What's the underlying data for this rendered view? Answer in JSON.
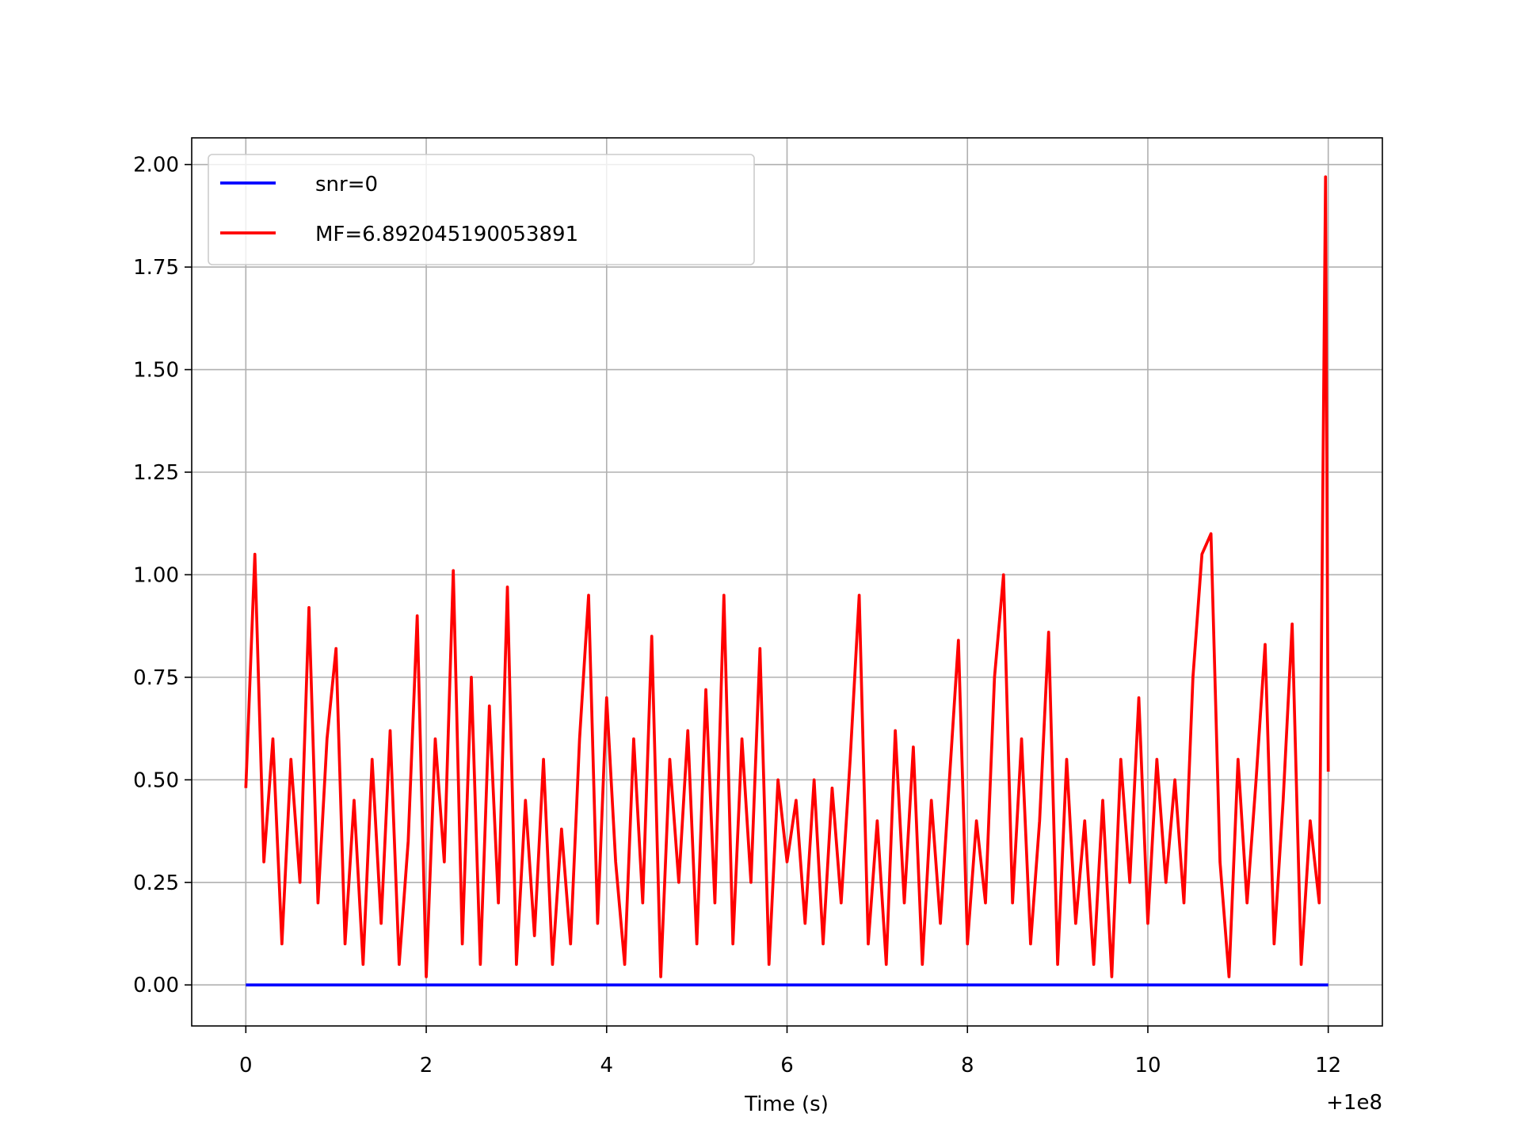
{
  "chart_data": {
    "type": "line",
    "xlabel": "Time (s)",
    "x_offset_label": "+1e8",
    "xlim": [
      -0.6,
      12.6
    ],
    "ylim": [
      -0.1,
      2.065
    ],
    "xticks": [
      0,
      2,
      4,
      6,
      8,
      10,
      12
    ],
    "yticks": [
      {
        "value": 0,
        "label": "0.00"
      },
      {
        "value": 0.25,
        "label": "0.25"
      },
      {
        "value": 0.5,
        "label": "0.50"
      },
      {
        "value": 0.75,
        "label": "0.75"
      },
      {
        "value": 1,
        "label": "1.00"
      },
      {
        "value": 1.25,
        "label": "1.25"
      },
      {
        "value": 1.5,
        "label": "1.50"
      },
      {
        "value": 1.75,
        "label": "1.75"
      },
      {
        "value": 2,
        "label": "2.00"
      }
    ],
    "grid": true,
    "legend": "upper left",
    "series": [
      {
        "name": "snr=0",
        "color": "#0000ff",
        "x": [
          0,
          12
        ],
        "values": [
          0,
          0
        ]
      },
      {
        "name": "MF=6.892045190053891",
        "color": "#ff0000",
        "x": [
          0,
          0.1,
          0.2,
          0.3,
          0.4,
          0.5,
          0.6,
          0.7,
          0.8,
          0.9,
          1,
          1.1,
          1.2,
          1.3,
          1.4,
          1.5,
          1.6,
          1.7,
          1.8,
          1.9,
          2,
          2.1,
          2.2,
          2.3,
          2.4,
          2.5,
          2.6,
          2.7,
          2.8,
          2.9,
          3,
          3.1,
          3.2,
          3.3,
          3.4,
          3.5,
          3.6,
          3.7,
          3.8,
          3.9,
          4,
          4.1,
          4.2,
          4.3,
          4.4,
          4.5,
          4.6,
          4.7,
          4.8,
          4.9,
          5,
          5.1,
          5.2,
          5.3,
          5.4,
          5.5,
          5.6,
          5.7,
          5.8,
          5.9,
          6,
          6.1,
          6.2,
          6.3,
          6.4,
          6.5,
          6.6,
          6.7,
          6.8,
          6.9,
          7,
          7.1,
          7.2,
          7.3,
          7.4,
          7.5,
          7.6,
          7.7,
          7.8,
          7.9,
          8,
          8.1,
          8.2,
          8.3,
          8.4,
          8.5,
          8.6,
          8.7,
          8.8,
          8.9,
          9,
          9.1,
          9.2,
          9.3,
          9.4,
          9.5,
          9.6,
          9.7,
          9.8,
          9.9,
          10,
          10.1,
          10.2,
          10.3,
          10.4,
          10.5,
          10.6,
          10.7,
          10.8,
          10.9,
          11,
          11.1,
          11.2,
          11.3,
          11.4,
          11.5,
          11.6,
          11.7,
          11.8,
          11.9,
          11.97,
          12
        ],
        "values": [
          0.48,
          1.05,
          0.3,
          0.6,
          0.1,
          0.55,
          0.25,
          0.92,
          0.2,
          0.6,
          0.82,
          0.1,
          0.45,
          0.05,
          0.55,
          0.15,
          0.62,
          0.05,
          0.35,
          0.9,
          0.02,
          0.6,
          0.3,
          1.01,
          0.1,
          0.75,
          0.05,
          0.68,
          0.2,
          0.97,
          0.05,
          0.45,
          0.12,
          0.55,
          0.05,
          0.38,
          0.1,
          0.6,
          0.95,
          0.15,
          0.7,
          0.3,
          0.05,
          0.6,
          0.2,
          0.85,
          0.02,
          0.55,
          0.25,
          0.62,
          0.1,
          0.72,
          0.2,
          0.95,
          0.1,
          0.6,
          0.25,
          0.82,
          0.05,
          0.5,
          0.3,
          0.45,
          0.15,
          0.5,
          0.1,
          0.48,
          0.2,
          0.55,
          0.95,
          0.1,
          0.4,
          0.05,
          0.62,
          0.2,
          0.58,
          0.05,
          0.45,
          0.15,
          0.5,
          0.84,
          0.1,
          0.4,
          0.2,
          0.75,
          1.0,
          0.2,
          0.6,
          0.1,
          0.4,
          0.86,
          0.05,
          0.55,
          0.15,
          0.4,
          0.05,
          0.45,
          0.02,
          0.55,
          0.25,
          0.7,
          0.15,
          0.55,
          0.25,
          0.5,
          0.2,
          0.75,
          1.05,
          1.1,
          0.3,
          0.02,
          0.55,
          0.2,
          0.5,
          0.83,
          0.1,
          0.45,
          0.88,
          0.05,
          0.4,
          0.2,
          1.97,
          0.52
        ]
      }
    ]
  }
}
